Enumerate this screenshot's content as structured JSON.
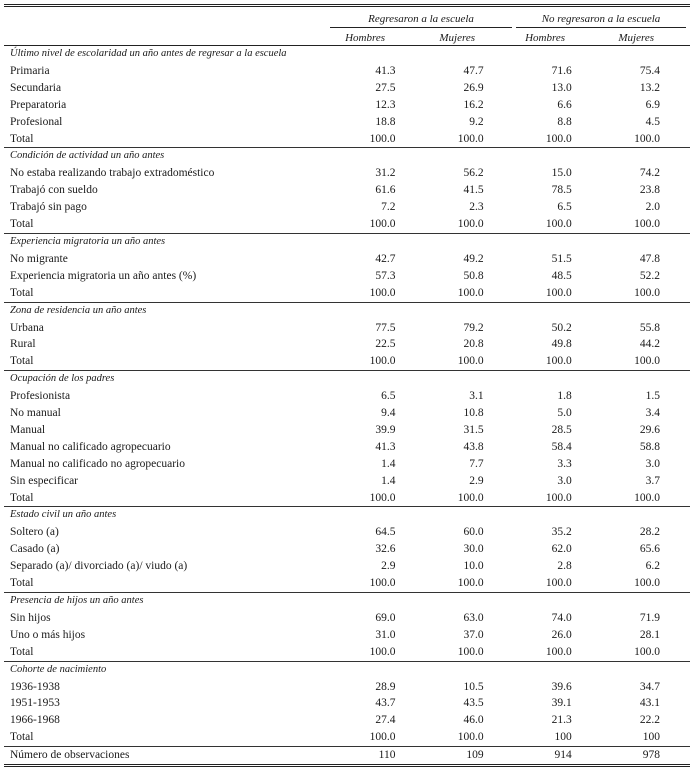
{
  "header": {
    "group1": "Regresaron a la escuela",
    "group2": "No regresaron a la escuela",
    "columns": [
      "Hombres",
      "Mujeres",
      "Hombres",
      "Mujeres"
    ]
  },
  "sections": [
    {
      "title": "Último nivel de escolaridad un año antes de regresar a la escuela",
      "rows": [
        {
          "label": "Primaria",
          "values": [
            "41.3",
            "47.7",
            "71.6",
            "75.4"
          ]
        },
        {
          "label": "Secundaria",
          "values": [
            "27.5",
            "26.9",
            "13.0",
            "13.2"
          ]
        },
        {
          "label": "Preparatoria",
          "values": [
            "12.3",
            "16.2",
            "6.6",
            "6.9"
          ]
        },
        {
          "label": "Profesional",
          "values": [
            "18.8",
            "9.2",
            "8.8",
            "4.5"
          ]
        },
        {
          "label": "Total",
          "values": [
            "100.0",
            "100.0",
            "100.0",
            "100.0"
          ]
        }
      ]
    },
    {
      "title": "Condición de actividad un año antes",
      "rows": [
        {
          "label": "No estaba realizando trabajo extradoméstico",
          "values": [
            "31.2",
            "56.2",
            "15.0",
            "74.2"
          ]
        },
        {
          "label": "Trabajó con sueldo",
          "values": [
            "61.6",
            "41.5",
            "78.5",
            "23.8"
          ]
        },
        {
          "label": "Trabajó sin pago",
          "values": [
            "7.2",
            "2.3",
            "6.5",
            "2.0"
          ]
        },
        {
          "label": "Total",
          "values": [
            "100.0",
            "100.0",
            "100.0",
            "100.0"
          ]
        }
      ]
    },
    {
      "title": "Experiencia migratoria un año antes",
      "rows": [
        {
          "label": "No migrante",
          "values": [
            "42.7",
            "49.2",
            "51.5",
            "47.8"
          ]
        },
        {
          "label": "Experiencia migratoria un año antes (%)",
          "values": [
            "57.3",
            "50.8",
            "48.5",
            "52.2"
          ]
        },
        {
          "label": "Total",
          "values": [
            "100.0",
            "100.0",
            "100.0",
            "100.0"
          ]
        }
      ]
    },
    {
      "title": "Zona de residencia un año antes",
      "rows": [
        {
          "label": "Urbana",
          "values": [
            "77.5",
            "79.2",
            "50.2",
            "55.8"
          ]
        },
        {
          "label": "Rural",
          "values": [
            "22.5",
            "20.8",
            "49.8",
            "44.2"
          ]
        },
        {
          "label": "Total",
          "values": [
            "100.0",
            "100.0",
            "100.0",
            "100.0"
          ]
        }
      ]
    },
    {
      "title": "Ocupación de los padres",
      "rows": [
        {
          "label": "Profesionista",
          "values": [
            "6.5",
            "3.1",
            "1.8",
            "1.5"
          ]
        },
        {
          "label": "No manual",
          "values": [
            "9.4",
            "10.8",
            "5.0",
            "3.4"
          ]
        },
        {
          "label": "Manual",
          "values": [
            "39.9",
            "31.5",
            "28.5",
            "29.6"
          ]
        },
        {
          "label": "Manual no calificado agropecuario",
          "values": [
            "41.3",
            "43.8",
            "58.4",
            "58.8"
          ]
        },
        {
          "label": "Manual no calificado no agropecuario",
          "values": [
            "1.4",
            "7.7",
            "3.3",
            "3.0"
          ]
        },
        {
          "label": "Sin especificar",
          "values": [
            "1.4",
            "2.9",
            "3.0",
            "3.7"
          ]
        },
        {
          "label": "Total",
          "values": [
            "100.0",
            "100.0",
            "100.0",
            "100.0"
          ]
        }
      ]
    },
    {
      "title": "Estado civil un año antes",
      "rows": [
        {
          "label": "Soltero (a)",
          "values": [
            "64.5",
            "60.0",
            "35.2",
            "28.2"
          ]
        },
        {
          "label": "Casado (a)",
          "values": [
            "32.6",
            "30.0",
            "62.0",
            "65.6"
          ]
        },
        {
          "label": "Separado (a)/ divorciado (a)/ viudo (a)",
          "values": [
            "2.9",
            "10.0",
            "2.8",
            "6.2"
          ]
        },
        {
          "label": "Total",
          "values": [
            "100.0",
            "100.0",
            "100.0",
            "100.0"
          ]
        }
      ]
    },
    {
      "title": "Presencia de hijos un año antes",
      "rows": [
        {
          "label": "Sin hijos",
          "values": [
            "69.0",
            "63.0",
            "74.0",
            "71.9"
          ]
        },
        {
          "label": "Uno o más hijos",
          "values": [
            "31.0",
            "37.0",
            "26.0",
            "28.1"
          ]
        },
        {
          "label": "Total",
          "values": [
            "100.0",
            "100.0",
            "100.0",
            "100.0"
          ]
        }
      ]
    },
    {
      "title": "Cohorte de nacimiento",
      "rows": [
        {
          "label": "1936-1938",
          "values": [
            "28.9",
            "10.5",
            "39.6",
            "34.7"
          ]
        },
        {
          "label": "1951-1953",
          "values": [
            "43.7",
            "43.5",
            "39.1",
            "43.1"
          ]
        },
        {
          "label": "1966-1968",
          "values": [
            "27.4",
            "46.0",
            "21.3",
            "22.2"
          ]
        },
        {
          "label": "Total",
          "values": [
            "100.0",
            "100.0",
            "100",
            "100"
          ]
        }
      ]
    }
  ],
  "observations": {
    "label": "Número de observaciones",
    "values": [
      "110",
      "109",
      "914",
      "978"
    ]
  }
}
